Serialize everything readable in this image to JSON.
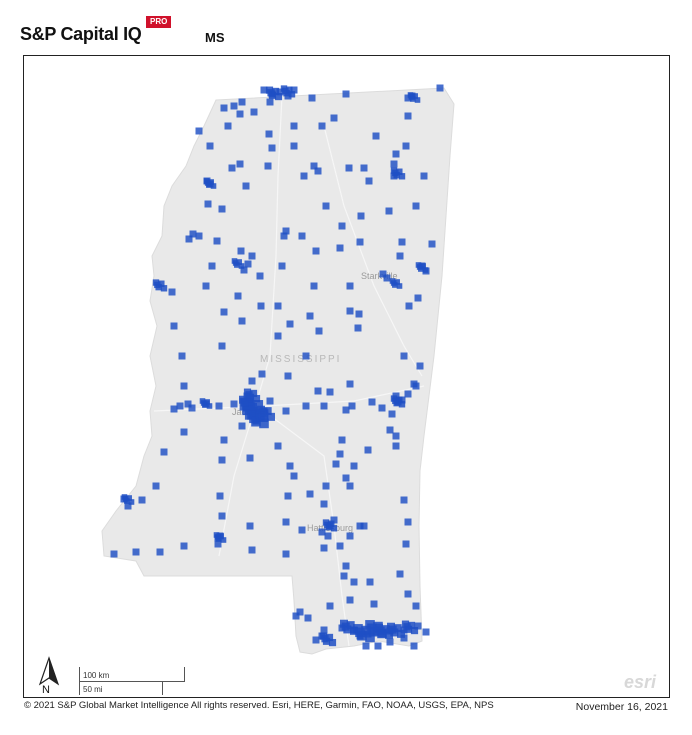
{
  "header": {
    "brand": "S&P Capital IQ",
    "badge": "PRO",
    "state_code": "MS"
  },
  "map": {
    "state_label": "MISSISSIPPI",
    "city_labels": [
      "Starkville",
      "Jackson",
      "Hattiesburg"
    ],
    "land_color": "#e9e9e9",
    "marker_color": "#1f4fc4",
    "scale": {
      "km": "100 km",
      "mi": "50 mi"
    },
    "north_label": "N",
    "basemap_logo": "esri"
  },
  "footer": {
    "copyright": "© 2021 S&P Global Market Intelligence All rights reserved. Esri, HERE, Garmin, FAO, NOAA, USGS, EPA, NPS",
    "date": "November 16, 2021"
  }
}
